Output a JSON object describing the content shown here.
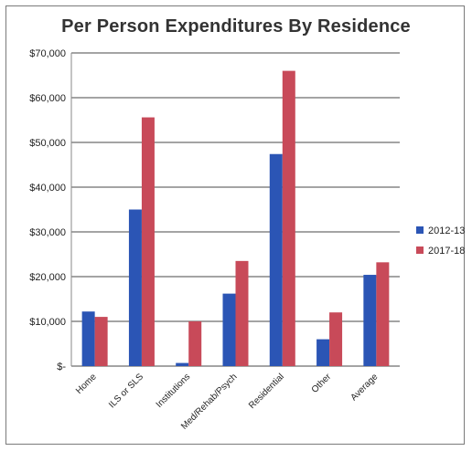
{
  "chart_data": {
    "type": "bar",
    "title": "Per Person Expenditures By Residence",
    "categories": [
      "Home",
      "ILS or SLS",
      "Institutions",
      "Med/Rehab/Psych",
      "Residential",
      "Other",
      "Average"
    ],
    "series": [
      {
        "name": "2012-13",
        "color": "#2b55b5",
        "values": [
          12200,
          35000,
          700,
          16200,
          47400,
          6000,
          20400
        ]
      },
      {
        "name": "2017-18",
        "color": "#c84a59",
        "values": [
          11000,
          55600,
          10000,
          23500,
          66000,
          12000,
          23200
        ]
      }
    ],
    "y_ticks": [
      "$-",
      "$10,000",
      "$20,000",
      "$30,000",
      "$40,000",
      "$50,000",
      "$60,000",
      "$70,000"
    ],
    "ylim": [
      0,
      70000
    ],
    "xlabel": "",
    "ylabel": "",
    "grid": true,
    "legend_position": "right"
  }
}
